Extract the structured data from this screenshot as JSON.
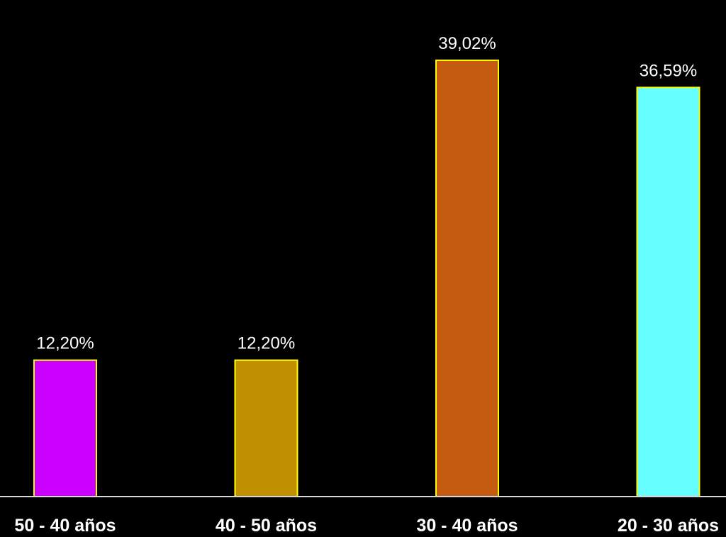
{
  "chart_data": {
    "type": "bar",
    "categories": [
      "50 - 40 años",
      "40 - 50 años",
      "30 - 40 años",
      "20 - 30 años"
    ],
    "values": [
      12.2,
      12.2,
      39.02,
      36.59
    ],
    "value_labels": [
      "12,20%",
      "12,20%",
      "39,02%",
      "36,59%"
    ],
    "ylim": [
      0,
      42
    ],
    "title": "",
    "xlabel": "",
    "ylabel": "",
    "grid": false,
    "legend": "none",
    "colors": {
      "background": "#000000",
      "bars": [
        "#CC00FF",
        "#C09000",
        "#C55A11",
        "#66FFFF"
      ],
      "bar_border": "#FFFF00",
      "axis_line": "#D9D9D9",
      "text": "#FFFFFF"
    }
  }
}
